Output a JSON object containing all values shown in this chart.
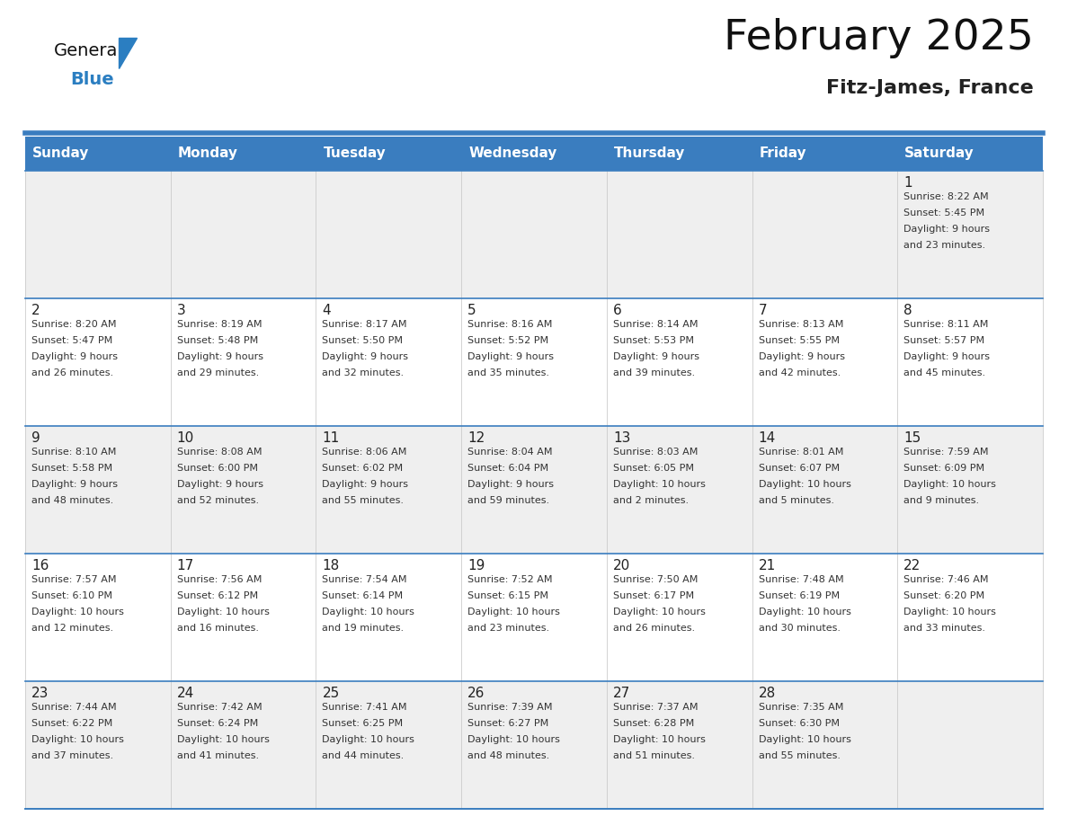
{
  "title": "February 2025",
  "subtitle": "Fitz-James, France",
  "days_of_week": [
    "Sunday",
    "Monday",
    "Tuesday",
    "Wednesday",
    "Thursday",
    "Friday",
    "Saturday"
  ],
  "header_bg": "#3a7dbf",
  "header_text": "#ffffff",
  "row_bg_odd": "#efefef",
  "row_bg_even": "#ffffff",
  "cell_border_blue": "#3a7dbf",
  "cell_border_light": "#cccccc",
  "day_num_color": "#222222",
  "info_color": "#333333",
  "title_color": "#111111",
  "subtitle_color": "#222222",
  "logo_general_color": "#111111",
  "logo_blue_color": "#2b7ec1",
  "separator_color": "#3a7dbf",
  "weeks": [
    [
      {
        "day": null,
        "info": ""
      },
      {
        "day": null,
        "info": ""
      },
      {
        "day": null,
        "info": ""
      },
      {
        "day": null,
        "info": ""
      },
      {
        "day": null,
        "info": ""
      },
      {
        "day": null,
        "info": ""
      },
      {
        "day": 1,
        "info": "Sunrise: 8:22 AM\nSunset: 5:45 PM\nDaylight: 9 hours\nand 23 minutes."
      }
    ],
    [
      {
        "day": 2,
        "info": "Sunrise: 8:20 AM\nSunset: 5:47 PM\nDaylight: 9 hours\nand 26 minutes."
      },
      {
        "day": 3,
        "info": "Sunrise: 8:19 AM\nSunset: 5:48 PM\nDaylight: 9 hours\nand 29 minutes."
      },
      {
        "day": 4,
        "info": "Sunrise: 8:17 AM\nSunset: 5:50 PM\nDaylight: 9 hours\nand 32 minutes."
      },
      {
        "day": 5,
        "info": "Sunrise: 8:16 AM\nSunset: 5:52 PM\nDaylight: 9 hours\nand 35 minutes."
      },
      {
        "day": 6,
        "info": "Sunrise: 8:14 AM\nSunset: 5:53 PM\nDaylight: 9 hours\nand 39 minutes."
      },
      {
        "day": 7,
        "info": "Sunrise: 8:13 AM\nSunset: 5:55 PM\nDaylight: 9 hours\nand 42 minutes."
      },
      {
        "day": 8,
        "info": "Sunrise: 8:11 AM\nSunset: 5:57 PM\nDaylight: 9 hours\nand 45 minutes."
      }
    ],
    [
      {
        "day": 9,
        "info": "Sunrise: 8:10 AM\nSunset: 5:58 PM\nDaylight: 9 hours\nand 48 minutes."
      },
      {
        "day": 10,
        "info": "Sunrise: 8:08 AM\nSunset: 6:00 PM\nDaylight: 9 hours\nand 52 minutes."
      },
      {
        "day": 11,
        "info": "Sunrise: 8:06 AM\nSunset: 6:02 PM\nDaylight: 9 hours\nand 55 minutes."
      },
      {
        "day": 12,
        "info": "Sunrise: 8:04 AM\nSunset: 6:04 PM\nDaylight: 9 hours\nand 59 minutes."
      },
      {
        "day": 13,
        "info": "Sunrise: 8:03 AM\nSunset: 6:05 PM\nDaylight: 10 hours\nand 2 minutes."
      },
      {
        "day": 14,
        "info": "Sunrise: 8:01 AM\nSunset: 6:07 PM\nDaylight: 10 hours\nand 5 minutes."
      },
      {
        "day": 15,
        "info": "Sunrise: 7:59 AM\nSunset: 6:09 PM\nDaylight: 10 hours\nand 9 minutes."
      }
    ],
    [
      {
        "day": 16,
        "info": "Sunrise: 7:57 AM\nSunset: 6:10 PM\nDaylight: 10 hours\nand 12 minutes."
      },
      {
        "day": 17,
        "info": "Sunrise: 7:56 AM\nSunset: 6:12 PM\nDaylight: 10 hours\nand 16 minutes."
      },
      {
        "day": 18,
        "info": "Sunrise: 7:54 AM\nSunset: 6:14 PM\nDaylight: 10 hours\nand 19 minutes."
      },
      {
        "day": 19,
        "info": "Sunrise: 7:52 AM\nSunset: 6:15 PM\nDaylight: 10 hours\nand 23 minutes."
      },
      {
        "day": 20,
        "info": "Sunrise: 7:50 AM\nSunset: 6:17 PM\nDaylight: 10 hours\nand 26 minutes."
      },
      {
        "day": 21,
        "info": "Sunrise: 7:48 AM\nSunset: 6:19 PM\nDaylight: 10 hours\nand 30 minutes."
      },
      {
        "day": 22,
        "info": "Sunrise: 7:46 AM\nSunset: 6:20 PM\nDaylight: 10 hours\nand 33 minutes."
      }
    ],
    [
      {
        "day": 23,
        "info": "Sunrise: 7:44 AM\nSunset: 6:22 PM\nDaylight: 10 hours\nand 37 minutes."
      },
      {
        "day": 24,
        "info": "Sunrise: 7:42 AM\nSunset: 6:24 PM\nDaylight: 10 hours\nand 41 minutes."
      },
      {
        "day": 25,
        "info": "Sunrise: 7:41 AM\nSunset: 6:25 PM\nDaylight: 10 hours\nand 44 minutes."
      },
      {
        "day": 26,
        "info": "Sunrise: 7:39 AM\nSunset: 6:27 PM\nDaylight: 10 hours\nand 48 minutes."
      },
      {
        "day": 27,
        "info": "Sunrise: 7:37 AM\nSunset: 6:28 PM\nDaylight: 10 hours\nand 51 minutes."
      },
      {
        "day": 28,
        "info": "Sunrise: 7:35 AM\nSunset: 6:30 PM\nDaylight: 10 hours\nand 55 minutes."
      },
      {
        "day": null,
        "info": ""
      }
    ]
  ]
}
